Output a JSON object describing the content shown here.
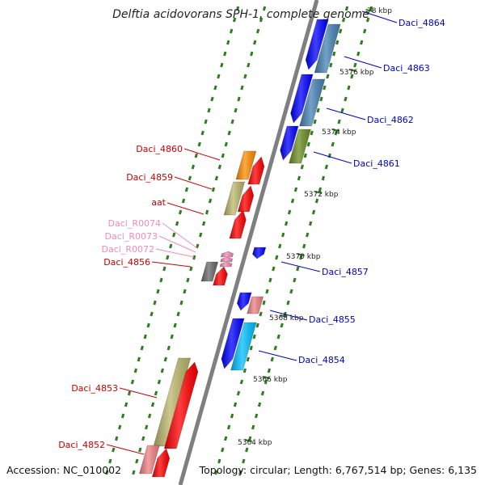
{
  "title": "Delftia acidovorans SPH-1, complete genome",
  "accession": "Accession: NC_010002",
  "topology": "Topology: circular; Length: 6,767,514 bp; Genes: 6,135",
  "colors": {
    "backbone": "#7f7f7f",
    "dots": "#2e7d1e",
    "forward_label": "#cc0000",
    "reverse_label": "#0000cc",
    "rna_label": "#f08cb4"
  },
  "ticks": [
    "78 kbp",
    "5376 kbp",
    "5374 kbp",
    "5372 kbp",
    "5370 kbp",
    "5368 kbp",
    "5366 kbp",
    "5364 kbp"
  ],
  "genes_forward": [
    {
      "name": "Daci_4860",
      "color": "#ff8c00"
    },
    {
      "name": "Daci_4859",
      "color": "#bdb76b"
    },
    {
      "name": "aat",
      "color": "#ff0000"
    },
    {
      "name": "Daci_R0074",
      "color": "#f08cb4"
    },
    {
      "name": "Daci_R0073",
      "color": "#f08cb4"
    },
    {
      "name": "Daci_R0072",
      "color": "#f08cb4"
    },
    {
      "name": "Daci_4856",
      "color": "#696969"
    },
    {
      "name": "Daci_4853",
      "color": "#bdb76b"
    },
    {
      "name": "Daci_4852",
      "color": "#f08080"
    }
  ],
  "genes_reverse": [
    {
      "name": "Daci_4864",
      "color": "#0000ff"
    },
    {
      "name": "Daci_4863",
      "color": "#4682b4"
    },
    {
      "name": "Daci_4862",
      "color": "#4682b4"
    },
    {
      "name": "Daci_4861",
      "color": "#6b8e23"
    },
    {
      "name": "Daci_4857",
      "color": "#0000ff"
    },
    {
      "name": "Daci_4855",
      "color": "#f08080"
    },
    {
      "name": "Daci_4854",
      "color": "#00bfff"
    }
  ]
}
